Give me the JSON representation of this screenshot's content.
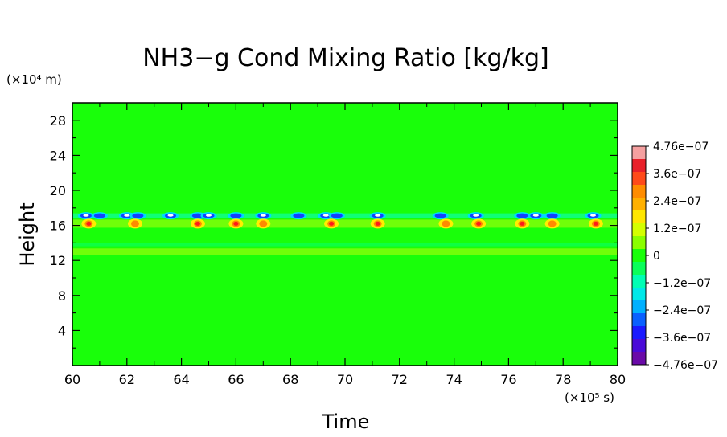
{
  "chart_data": {
    "type": "heatmap",
    "title": "NH3−g Cond Mixing Ratio [kg/kg]",
    "xlabel": "Time",
    "ylabel": "Height",
    "x_unit": "(×10⁵ s)",
    "y_unit": "(×10⁴ m)",
    "xlim": [
      60,
      80
    ],
    "ylim": [
      0,
      30
    ],
    "x_ticks": [
      "60",
      "62",
      "64",
      "66",
      "68",
      "70",
      "72",
      "74",
      "76",
      "78",
      "80"
    ],
    "y_ticks": [
      "4",
      "8",
      "12",
      "16",
      "20",
      "24",
      "28"
    ],
    "colorbar": {
      "labels": [
        "4.76e−07",
        "3.6e−07",
        "2.4e−07",
        "1.2e−07",
        "0",
        "−1.2e−07",
        "−2.4e−07",
        "−3.6e−07",
        "−4.76e−07"
      ],
      "range": [
        -4.76e-07,
        4.76e-07
      ]
    },
    "background_value": 0,
    "features": [
      {
        "kind": "negative_band",
        "height": 17.1,
        "x": [
          60.5,
          61.0,
          62.0,
          62.4,
          63.6,
          64.6,
          65.0,
          66.0,
          67.0,
          68.3,
          69.3,
          69.7,
          71.2,
          73.5,
          74.8,
          76.5,
          77.0,
          77.6,
          79.1
        ],
        "value": -4e-07
      },
      {
        "kind": "positive_band",
        "height": 16.2,
        "x": [
          60.6,
          62.3,
          64.6,
          66.0,
          67.0,
          69.5,
          71.2,
          73.7,
          74.9,
          76.5,
          77.6,
          79.2
        ],
        "value": 3.2e-07
      },
      {
        "kind": "weak_positive",
        "height": 13.0,
        "value": 9e-08
      },
      {
        "kind": "weak_negative",
        "height": 13.8,
        "value": -8e-08
      }
    ]
  }
}
